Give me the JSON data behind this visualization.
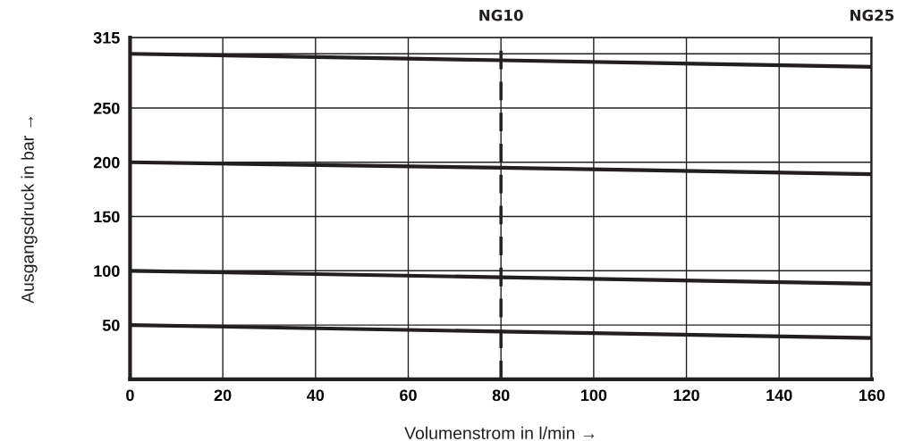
{
  "chart_data": {
    "type": "line",
    "xlabel": "Volumenstrom in l/min →",
    "ylabel": "Ausgangsdruck in bar →",
    "x": [
      0,
      80,
      160
    ],
    "series": [
      {
        "color": "#231f20",
        "values": [
          300,
          294,
          288
        ]
      },
      {
        "color": "#231f20",
        "values": [
          200,
          195,
          189
        ]
      },
      {
        "color": "#231f20",
        "values": [
          100,
          94,
          88
        ]
      },
      {
        "color": "#231f20",
        "values": [
          50,
          44,
          38
        ]
      }
    ],
    "xlim": [
      0,
      160
    ],
    "xticks": [
      0,
      20,
      40,
      60,
      80,
      100,
      120,
      140,
      160
    ],
    "ylim": [
      0,
      315
    ],
    "yticks": [
      {
        "value": 0,
        "label": null
      },
      50,
      100,
      150,
      200,
      250,
      {
        "value": 300,
        "label": null
      },
      315
    ],
    "ref_lines": [
      {
        "axis": "x",
        "value": 80,
        "label": "NG10",
        "color": "#231f20",
        "line_style": "dashed"
      },
      {
        "axis": "x",
        "value": 160,
        "label": "NG25",
        "color": "#231f20",
        "line_style": "solid"
      }
    ],
    "grid": true,
    "marker": "none",
    "line_style": "solid"
  }
}
